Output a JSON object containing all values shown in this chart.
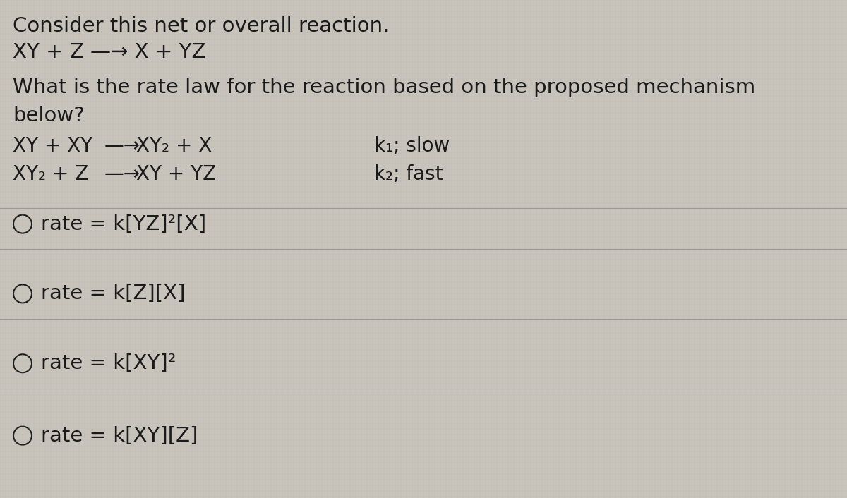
{
  "bg_color": "#c8c4bc",
  "text_color": "#1a1a1a",
  "title_line": "Consider this net or overall reaction.",
  "overall_reaction": "XY + Z —→ X + YZ",
  "question_line1": "What is the rate law for the reaction based on the proposed mechanism",
  "question_line2": "below?",
  "mech_step1_left": "XY + XY",
  "mech_step1_arrow": "—→",
  "mech_step1_right": "XY₂ + X",
  "mech_step1_rate": "k₁; slow",
  "mech_step2_left": "XY₂ + Z",
  "mech_step2_arrow": "—→",
  "mech_step2_right": "XY + YZ",
  "mech_step2_rate": "k₂; fast",
  "options": [
    "rate = k[YZ]²[X]",
    "rate = k[Z][X]",
    "rate = k[XY]²",
    "rate = k[XY][Z]"
  ],
  "font_size_title": 21,
  "font_size_overall": 21,
  "font_size_question": 21,
  "font_size_mech": 20,
  "font_size_options": 21,
  "grid_color_h": "#aaaaaa",
  "grid_color_v": "#bbbbbb",
  "divider_color": "#999999",
  "divider_linewidth": 0.8,
  "circle_linewidth": 1.5
}
